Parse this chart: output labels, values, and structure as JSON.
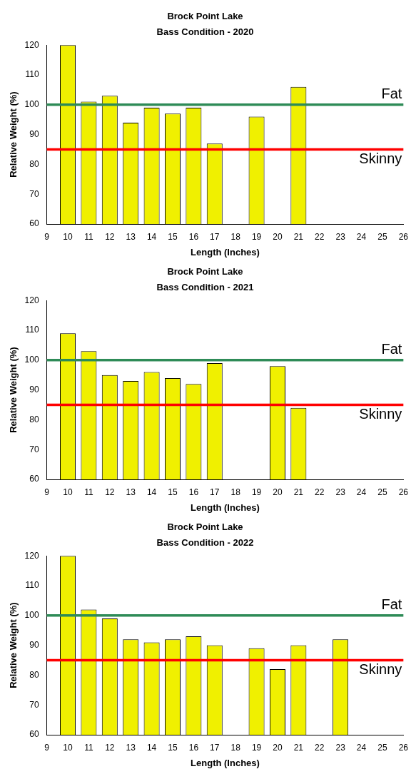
{
  "chart_data": [
    {
      "type": "bar",
      "title": "Brock Point Lake",
      "subtitle": "Bass Condition - 2020",
      "xlabel": "Length (Inches)",
      "ylabel": "Relative Weight (%)",
      "x": [
        10,
        11,
        12,
        13,
        14,
        15,
        16,
        17,
        19,
        21
      ],
      "values": [
        120,
        101,
        103,
        94,
        99,
        97,
        99,
        87,
        96,
        106
      ],
      "color": "#f0f000",
      "xlim": [
        9,
        26
      ],
      "xticks": [
        9,
        10,
        11,
        12,
        13,
        14,
        15,
        16,
        17,
        18,
        19,
        20,
        21,
        22,
        23,
        24,
        25,
        26
      ],
      "ylim": [
        60,
        120
      ],
      "yticks": [
        60,
        70,
        80,
        90,
        100,
        110,
        120
      ],
      "ref_lines": [
        {
          "axis": "y",
          "value": 100,
          "label": "Fat",
          "color": "#2e8b57"
        },
        {
          "axis": "y",
          "value": 85,
          "label": "Skinny",
          "color": "#ff0000"
        }
      ],
      "grid": false,
      "legend": false
    },
    {
      "type": "bar",
      "title": "Brock Point Lake",
      "subtitle": "Bass Condition - 2021",
      "xlabel": "Length (Inches)",
      "ylabel": "Relative Weight (%)",
      "x": [
        10,
        11,
        12,
        13,
        14,
        15,
        16,
        17,
        20,
        21
      ],
      "values": [
        109,
        103,
        95,
        93,
        96,
        94,
        92,
        99,
        98,
        84
      ],
      "color": "#f0f000",
      "xlim": [
        9,
        26
      ],
      "xticks": [
        9,
        10,
        11,
        12,
        13,
        14,
        15,
        16,
        17,
        18,
        19,
        20,
        21,
        22,
        23,
        24,
        25,
        26
      ],
      "ylim": [
        60,
        120
      ],
      "yticks": [
        60,
        70,
        80,
        90,
        100,
        110,
        120
      ],
      "ref_lines": [
        {
          "axis": "y",
          "value": 100,
          "label": "Fat",
          "color": "#2e8b57"
        },
        {
          "axis": "y",
          "value": 85,
          "label": "Skinny",
          "color": "#ff0000"
        }
      ],
      "grid": false,
      "legend": false
    },
    {
      "type": "bar",
      "title": "Brock Point Lake",
      "subtitle": "Bass Condition - 2022",
      "xlabel": "Length (Inches)",
      "ylabel": "Relative Weight (%)",
      "x": [
        10,
        11,
        12,
        13,
        14,
        15,
        16,
        17,
        19,
        20,
        21,
        23
      ],
      "values": [
        120,
        102,
        99,
        92,
        91,
        92,
        93,
        90,
        89,
        82,
        90,
        92
      ],
      "color": "#f0f000",
      "xlim": [
        9,
        26
      ],
      "xticks": [
        9,
        10,
        11,
        12,
        13,
        14,
        15,
        16,
        17,
        18,
        19,
        20,
        21,
        22,
        23,
        24,
        25,
        26
      ],
      "ylim": [
        60,
        120
      ],
      "yticks": [
        60,
        70,
        80,
        90,
        100,
        110,
        120
      ],
      "ref_lines": [
        {
          "axis": "y",
          "value": 100,
          "label": "Fat",
          "color": "#2e8b57"
        },
        {
          "axis": "y",
          "value": 85,
          "label": "Skinny",
          "color": "#ff0000"
        }
      ],
      "grid": false,
      "legend": false
    }
  ]
}
